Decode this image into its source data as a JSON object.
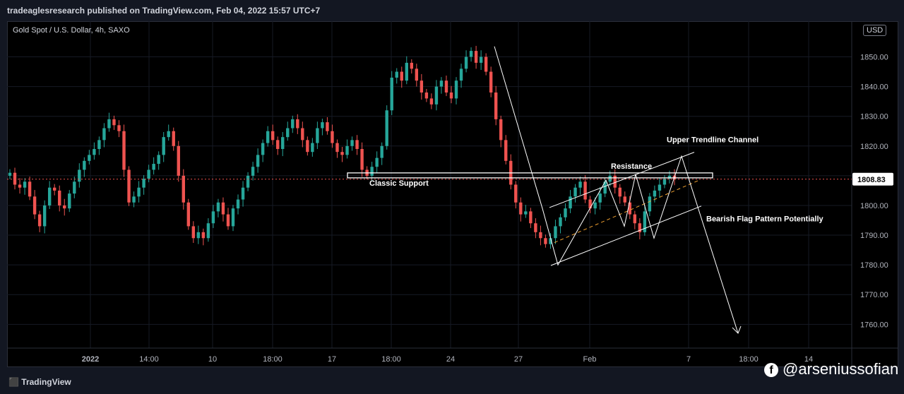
{
  "header": {
    "publisher": "tradeaglesresearch published on TradingView.com, Feb 04, 2022 15:57 UTC+7"
  },
  "legend": {
    "symbol": "Gold Spot / U.S. Dollar, 4h, SAXO"
  },
  "currency_label": "USD",
  "footer": {
    "brand": "TradingView",
    "social_handle": "@arseniussofian"
  },
  "colors": {
    "up": "#26a69a",
    "down": "#ef5350",
    "line": "#ffffff",
    "current_price": "#ffffff",
    "trend_dash": "#f0a030"
  },
  "chart_data": {
    "type": "candlestick",
    "ylim": [
      1752,
      1862
    ],
    "yticks": [
      1850,
      1840,
      1830,
      1820,
      1810,
      1800,
      1790,
      1780,
      1770,
      1760
    ],
    "ytick_labels": [
      "1850.00",
      "1840.00",
      "1830.00",
      "1820.00",
      "1810.00",
      "1800.00",
      "1790.00",
      "1780.00",
      "1770.00",
      "1760.00"
    ],
    "x_labels": [
      "2022",
      "14:00",
      "10",
      "18:00",
      "17",
      "18:00",
      "24",
      "27",
      "Feb",
      "7",
      "18:00",
      "14"
    ],
    "current_price": 1808.83,
    "current_price_label": "1808.83",
    "closes": [
      1811,
      1807,
      1806,
      1808,
      1803,
      1797,
      1793,
      1800,
      1806,
      1805,
      1800,
      1799,
      1804,
      1808,
      1812,
      1815,
      1817,
      1819,
      1822,
      1826,
      1829,
      1827,
      1825,
      1812,
      1801,
      1803,
      1806,
      1809,
      1812,
      1814,
      1817,
      1823,
      1825,
      1820,
      1810,
      1801,
      1793,
      1789,
      1791,
      1789,
      1794,
      1798,
      1801,
      1797,
      1793,
      1799,
      1802,
      1806,
      1810,
      1813,
      1817,
      1821,
      1825,
      1822,
      1819,
      1823,
      1826,
      1829,
      1826,
      1822,
      1818,
      1821,
      1826,
      1828,
      1825,
      1821,
      1818,
      1817,
      1820,
      1822,
      1819,
      1812,
      1810,
      1813,
      1816,
      1820,
      1832,
      1843,
      1845,
      1842,
      1848,
      1846,
      1842,
      1838,
      1836,
      1834,
      1840,
      1842,
      1838,
      1836,
      1842,
      1846,
      1850,
      1852,
      1848,
      1850,
      1845,
      1838,
      1829,
      1822,
      1815,
      1807,
      1801,
      1797,
      1798,
      1794,
      1791,
      1789,
      1787,
      1789,
      1793,
      1796,
      1799,
      1803,
      1806,
      1808,
      1802,
      1799,
      1801,
      1804,
      1808,
      1810,
      1806,
      1803,
      1801,
      1797,
      1794,
      1791,
      1798,
      1803,
      1805,
      1807,
      1809,
      1810,
      1808.83
    ],
    "annotations": {
      "classic_support": {
        "label": "Classic Support",
        "price": 1810
      },
      "resistance": {
        "label": "Resistance",
        "price": 1810
      },
      "upper_trendline": {
        "label": "Upper Trendline Channel"
      },
      "bearish_flag": {
        "label": "Bearish Flag Pattern Potentially"
      },
      "projection": {
        "from_price": 1817,
        "to_price": 1757
      }
    }
  }
}
